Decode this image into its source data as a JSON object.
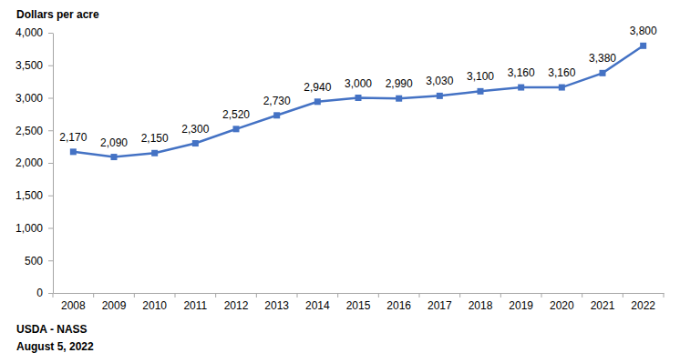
{
  "chart_data": {
    "type": "line",
    "y_label": "Dollars per acre",
    "notes": [
      "USDA - NASS",
      "August 5, 2022"
    ],
    "categories": [
      "2008",
      "2009",
      "2010",
      "2011",
      "2012",
      "2013",
      "2014",
      "2015",
      "2016",
      "2017",
      "2018",
      "2019",
      "2020",
      "2021",
      "2022"
    ],
    "values": [
      2170,
      2090,
      2150,
      2300,
      2520,
      2730,
      2940,
      3000,
      2990,
      3030,
      3100,
      3160,
      3160,
      3380,
      3800
    ],
    "value_labels": [
      "2,170",
      "2,090",
      "2,150",
      "2,300",
      "2,520",
      "2,730",
      "2,940",
      "3,000",
      "2,990",
      "3,030",
      "3,100",
      "3,160",
      "3,160",
      "3,380",
      "3,800"
    ],
    "data_labels": true,
    "color": "#4472c4",
    "marker": "square",
    "line_style": "solid",
    "grid": false,
    "ylim": [
      0,
      4000
    ],
    "yticks": [
      0,
      500,
      {
        "value": 1000,
        "label": "1,000"
      },
      {
        "value": 1500,
        "label": "1,500"
      },
      {
        "value": 2000,
        "label": "2,000"
      },
      {
        "value": 2500,
        "label": "2,500"
      },
      {
        "value": 3000,
        "label": "3,000"
      },
      {
        "value": 3500,
        "label": "3,500"
      },
      {
        "value": 4000,
        "label": "4,000"
      }
    ]
  }
}
